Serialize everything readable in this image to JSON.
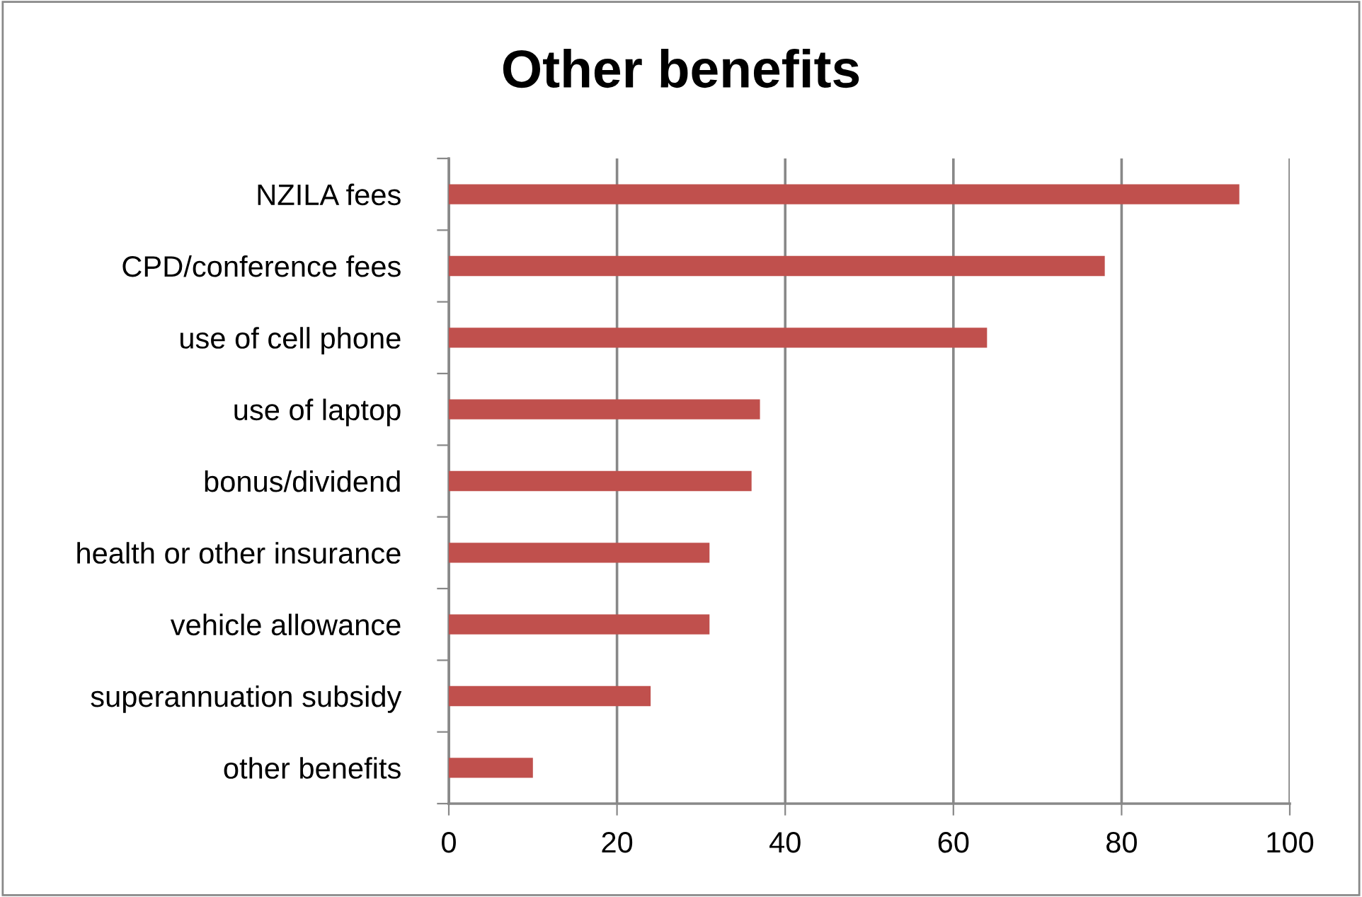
{
  "chart_data": {
    "type": "bar",
    "orientation": "horizontal",
    "title": "Other benefits",
    "categories": [
      "NZILA fees",
      "CPD/conference fees",
      "use of cell phone",
      "use of laptop",
      "bonus/dividend",
      "health or other insurance",
      "vehicle allowance",
      "superannuation subsidy",
      "other benefits"
    ],
    "values": [
      94,
      78,
      64,
      37,
      36,
      31,
      31,
      24,
      10
    ],
    "color": "#c0504d",
    "xlim": [
      0,
      100
    ],
    "xticks": [
      0,
      20,
      40,
      60,
      80,
      100
    ],
    "grid": "x"
  }
}
